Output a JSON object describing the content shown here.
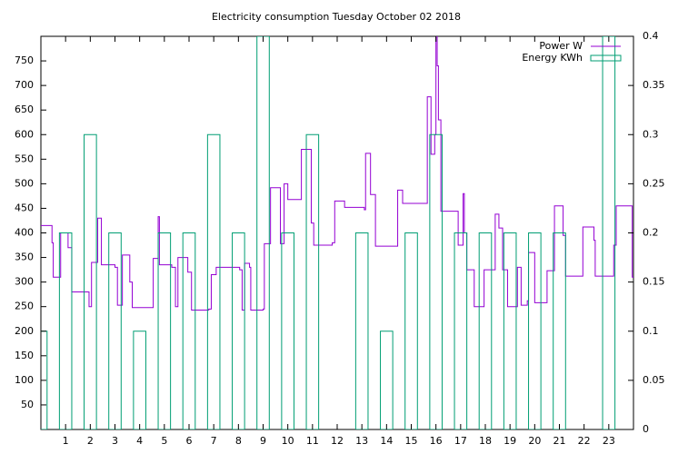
{
  "chart_data": {
    "type": "line",
    "title": "Electricity consumption Tuesday October 02 2018",
    "xlim": [
      0,
      24
    ],
    "xticks": [
      1,
      2,
      3,
      4,
      5,
      6,
      7,
      8,
      9,
      10,
      11,
      12,
      13,
      14,
      15,
      16,
      17,
      18,
      19,
      20,
      21,
      22,
      23
    ],
    "ylim": [
      0,
      800
    ],
    "yticks": [
      50,
      100,
      150,
      200,
      250,
      300,
      350,
      400,
      450,
      500,
      550,
      600,
      650,
      700,
      750
    ],
    "y2lim": [
      0,
      0.4
    ],
    "y2ticks": [
      0,
      0.05,
      0.1,
      0.15,
      0.2,
      0.25,
      0.3,
      0.35,
      0.4
    ],
    "grid": false,
    "legend": "top-right",
    "series": [
      {
        "name": "Power W",
        "type": "steps",
        "color": "#9400d3",
        "x": [
          0,
          0.45,
          0.5,
          0.8,
          1.1,
          1.25,
          1.95,
          2.05,
          2.3,
          2.45,
          3.0,
          3.1,
          3.3,
          3.6,
          3.7,
          4.55,
          4.75,
          4.8,
          5.3,
          5.45,
          5.55,
          5.95,
          6.1,
          6.8,
          6.9,
          7.1,
          8.05,
          8.15,
          8.25,
          8.45,
          8.5,
          9.0,
          9.05,
          9.3,
          9.7,
          9.85,
          10.0,
          10.55,
          10.95,
          11.05,
          11.8,
          11.9,
          12.3,
          13.1,
          13.15,
          13.35,
          13.55,
          14.45,
          14.65,
          15.6,
          15.65,
          15.8,
          15.95,
          16.0,
          16.05,
          16.1,
          16.2,
          16.9,
          17.1,
          17.15,
          17.25,
          17.55,
          17.95,
          18.4,
          18.55,
          18.7,
          18.9,
          19.3,
          19.45,
          19.7,
          19.75,
          20.0,
          20.5,
          20.8,
          21.15,
          21.25,
          21.95,
          22.4,
          22.45,
          23.2,
          23.3,
          23.95
        ],
        "values": [
          415,
          380,
          310,
          400,
          370,
          280,
          250,
          340,
          430,
          335,
          330,
          253,
          355,
          300,
          248,
          348,
          433,
          335,
          330,
          250,
          350,
          320,
          243,
          245,
          315,
          330,
          325,
          243,
          338,
          330,
          243,
          245,
          378,
          492,
          378,
          500,
          468,
          570,
          420,
          375,
          380,
          465,
          452,
          447,
          562,
          478,
          373,
          487,
          460,
          460,
          677,
          560,
          600,
          800,
          740,
          630,
          444,
          375,
          480,
          400,
          325,
          250,
          325,
          438,
          410,
          325,
          250,
          330,
          253,
          262,
          360,
          258,
          323,
          455,
          395,
          312,
          412,
          385,
          312,
          375,
          455,
          310
        ]
      },
      {
        "name": "Energy KWh",
        "type": "bar",
        "color": "#009e73",
        "axis": "y2",
        "x": [
          0,
          1,
          2,
          3,
          4,
          5,
          6,
          7,
          8,
          9,
          10,
          11,
          12,
          13,
          14,
          15,
          16,
          17,
          18,
          19,
          20,
          21,
          22,
          23
        ],
        "values": [
          0.1,
          0.2,
          0.3,
          0.2,
          0.1,
          0.2,
          0.2,
          0.3,
          0.2,
          0.4,
          0.2,
          0.3,
          0,
          0.2,
          0.1,
          0.2,
          0.3,
          0.2,
          0.2,
          0.2,
          0.2,
          0.2,
          0,
          0.4
        ]
      }
    ]
  }
}
